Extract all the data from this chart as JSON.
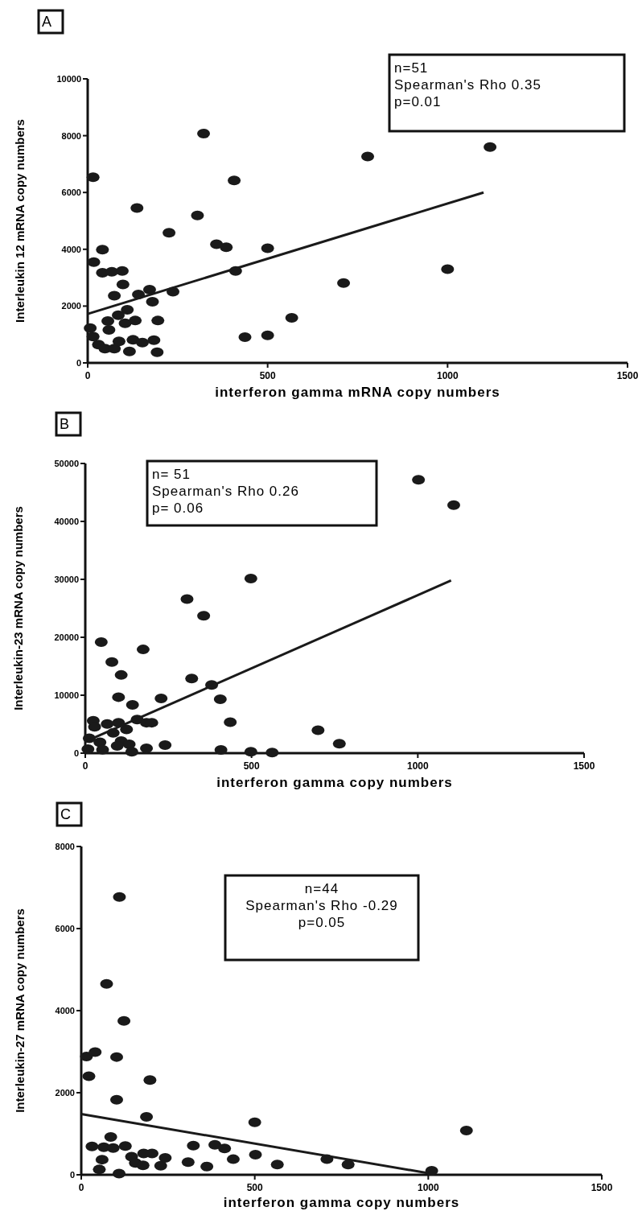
{
  "chart_data": [
    {
      "type": "scatter",
      "title": "A",
      "xlabel": "interferon gamma mRNA copy numbers",
      "ylabel": "Interleukin 12 mRNA copy numbers",
      "annotations": [
        "n=51",
        "Spearman's Rho 0.35",
        "p=0.01"
      ],
      "xlim": [
        0,
        1500
      ],
      "xticks": [
        0,
        500,
        1000,
        1500
      ],
      "ylim": [
        0,
        10000
      ],
      "yticks": [
        0,
        2000,
        4000,
        6000,
        8000,
        10000
      ],
      "grid": false,
      "series": [
        {
          "marker": "circle",
          "color": "#1a1a1a",
          "x": [
            322,
            778,
            1118,
            15,
            407,
            137,
            305,
            226,
            358,
            385,
            500,
            41,
            17,
            41,
            67,
            96,
            411,
            98,
            74,
            141,
            172,
            237,
            180,
            110,
            85,
            56,
            104,
            132,
            195,
            59,
            7,
            15,
            30,
            48,
            74,
            87,
            126,
            116,
            152,
            184,
            193,
            567,
            437,
            500,
            711,
            1000
          ],
          "values": [
            8075,
            7264,
            7600,
            6538,
            6425,
            5453,
            5189,
            4585,
            4179,
            4075,
            4038,
            3990,
            3547,
            3170,
            3208,
            3236,
            3236,
            2764,
            2368,
            2406,
            2575,
            2509,
            2151,
            1868,
            1679,
            1472,
            1396,
            1491,
            1491,
            1160,
            1226,
            925,
            642,
            500,
            500,
            755,
            811,
            406,
            717,
            802,
            377,
            1585,
            906,
            972,
            2811,
            3300
          ]
        },
        {
          "type": "line",
          "marker": "none",
          "line_style": "solid",
          "color": "#1a1a1a",
          "x": [
            0,
            1100
          ],
          "values": [
            1726,
            6000
          ]
        }
      ]
    },
    {
      "type": "scatter",
      "title": "B",
      "xlabel": "interferon gamma copy numbers",
      "ylabel": "Interleukin-23 mRNA copy numbers",
      "annotations": [
        "n= 51",
        "Spearman's Rho 0.26",
        "p= 0.06"
      ],
      "xlim": [
        0,
        1500
      ],
      "xticks": [
        0,
        500,
        1000,
        1500
      ],
      "ylim": [
        0,
        50000
      ],
      "yticks": [
        0,
        10000,
        20000,
        30000,
        40000,
        50000
      ],
      "grid": false,
      "series": [
        {
          "marker": "circle",
          "color": "#1a1a1a",
          "x": [
            498,
            306,
            356,
            48,
            174,
            80,
            108,
            320,
            380,
            100,
            228,
            406,
            142,
            436,
            24,
            28,
            66,
            100,
            124,
            156,
            184,
            200,
            84,
            12,
            44,
            108,
            132,
            96,
            52,
            140,
            184,
            240,
            408,
            498,
            562,
            700,
            764,
            8,
            1002,
            1108
          ],
          "values": [
            30140,
            26600,
            23720,
            19160,
            17900,
            15720,
            13490,
            12880,
            11770,
            9670,
            9440,
            9300,
            8330,
            5350,
            5580,
            4560,
            5020,
            5260,
            4090,
            5810,
            5260,
            5260,
            3490,
            2560,
            1860,
            2090,
            1530,
            1260,
            600,
            230,
            840,
            1400,
            560,
            230,
            90,
            3950,
            1630,
            700,
            47200,
            42800
          ]
        },
        {
          "type": "line",
          "marker": "none",
          "line_style": "solid",
          "color": "#1a1a1a",
          "x": [
            0,
            1100
          ],
          "values": [
            2000,
            29800
          ]
        }
      ]
    },
    {
      "type": "scatter",
      "title": "C",
      "xlabel": "interferon gamma copy numbers",
      "ylabel": "Interleukin-27 mRNA copy numbers",
      "annotations": [
        "n=44",
        "Spearman's Rho -0.29",
        "p=0.05"
      ],
      "xlim": [
        0,
        1500
      ],
      "xticks": [
        0,
        500,
        1000,
        1500
      ],
      "ylim": [
        0,
        8000
      ],
      "yticks": [
        0,
        2000,
        4000,
        6000,
        8000
      ],
      "grid": false,
      "series": [
        {
          "marker": "circle",
          "color": "#1a1a1a",
          "x": [
            110,
            73,
            123,
            15,
            40,
            102,
            22,
            198,
            102,
            188,
            500,
            85,
            31,
            65,
            92,
            127,
            60,
            52,
            109,
            145,
            156,
            178,
            180,
            204,
            229,
            242,
            308,
            323,
            362,
            385,
            413,
            438,
            502,
            565,
            708,
            769,
            1010,
            1110
          ],
          "values": [
            6770,
            4650,
            3750,
            2880,
            2990,
            2870,
            2400,
            2310,
            1830,
            1410,
            1280,
            920,
            690,
            670,
            650,
            700,
            370,
            130,
            30,
            440,
            290,
            230,
            520,
            520,
            220,
            410,
            310,
            710,
            200,
            730,
            640,
            380,
            490,
            250,
            380,
            250,
            100,
            1080
          ]
        },
        {
          "type": "line",
          "marker": "none",
          "line_style": "solid",
          "color": "#1a1a1a",
          "x": [
            0,
            1000
          ],
          "values": [
            1480,
            40
          ]
        }
      ]
    }
  ]
}
